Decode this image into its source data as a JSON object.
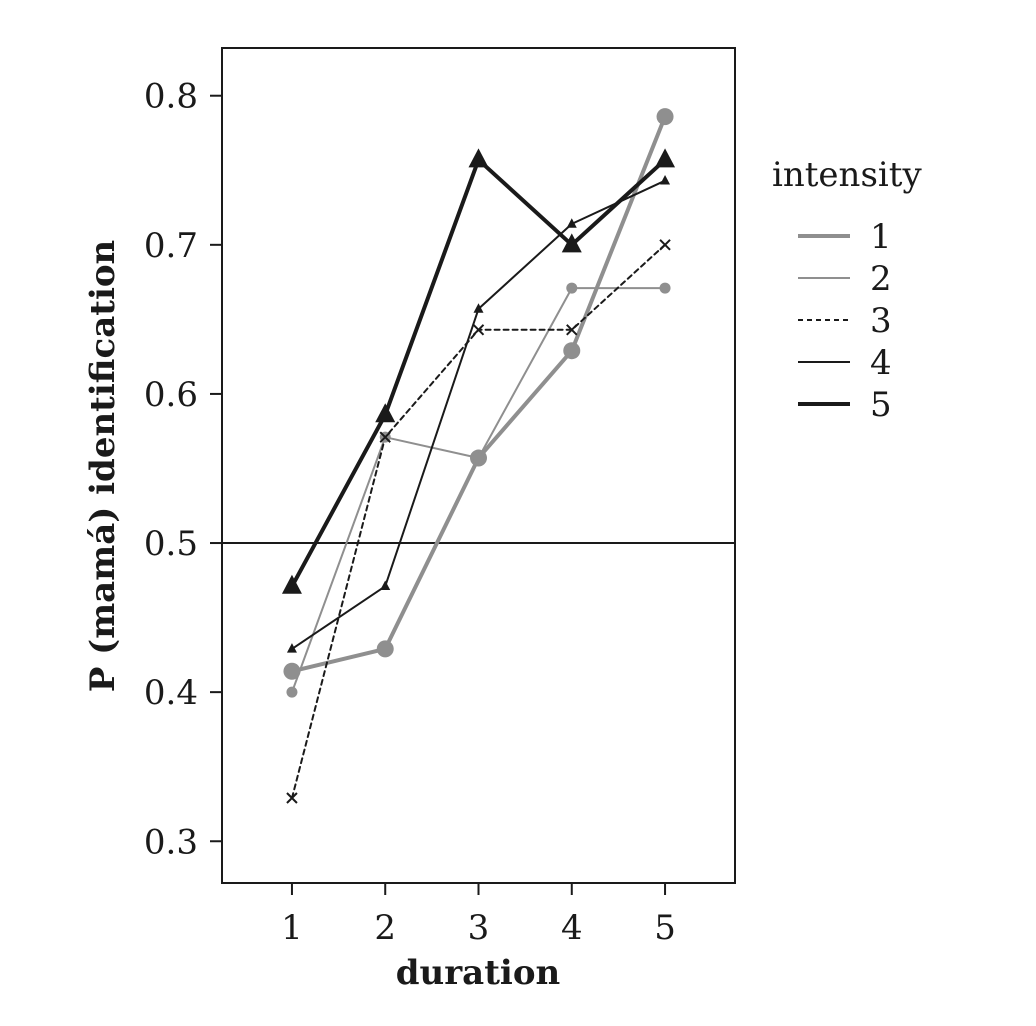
{
  "chart_data": {
    "type": "line",
    "xlabel": "duration",
    "ylabel": "P (mamá) identification",
    "x": [
      1,
      2,
      3,
      4,
      5
    ],
    "x_ticks": [
      "1",
      "2",
      "3",
      "4",
      "5"
    ],
    "y_ticks": [
      "0.3",
      "0.4",
      "0.5",
      "0.6",
      "0.7",
      "0.8"
    ],
    "xlim": [
      0.25,
      5.75
    ],
    "ylim": [
      0.272,
      0.832
    ],
    "reference_line": 0.5,
    "grid": false,
    "legend": {
      "title": "intensity",
      "position": "right"
    },
    "series": [
      {
        "name": "1",
        "values": [
          0.414,
          0.429,
          0.557,
          0.629,
          0.786
        ],
        "color": "#8f8f8f",
        "marker": "circle-large",
        "line": "thick-solid"
      },
      {
        "name": "2",
        "values": [
          0.4,
          0.571,
          0.557,
          0.671,
          0.671
        ],
        "color": "#8f8f8f",
        "marker": "circle-small",
        "line": "thin-solid"
      },
      {
        "name": "3",
        "values": [
          0.329,
          0.571,
          0.643,
          0.643,
          0.7
        ],
        "color": "#1a1a1a",
        "marker": "cross",
        "line": "dotted"
      },
      {
        "name": "4",
        "values": [
          0.429,
          0.471,
          0.657,
          0.714,
          0.743
        ],
        "color": "#1a1a1a",
        "marker": "triangle-small",
        "line": "thin-solid"
      },
      {
        "name": "5",
        "values": [
          0.471,
          0.586,
          0.757,
          0.7,
          0.757
        ],
        "color": "#1a1a1a",
        "marker": "triangle-large",
        "line": "thick-solid"
      }
    ]
  }
}
